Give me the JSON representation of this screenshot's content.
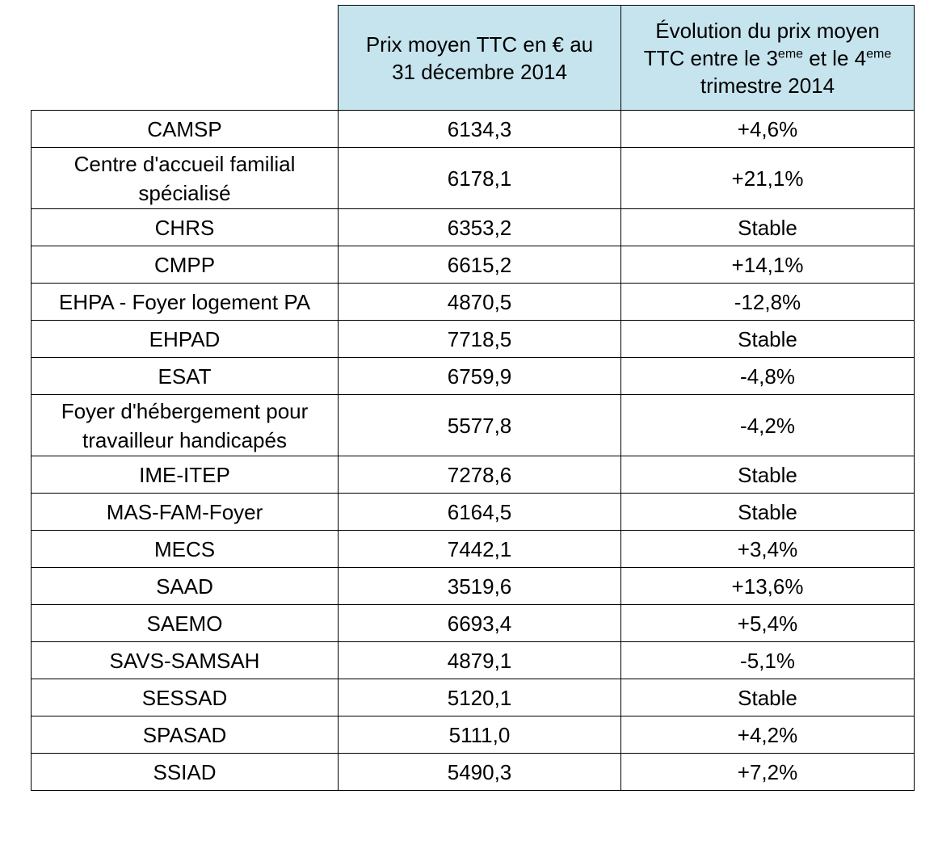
{
  "header": {
    "col_price_lines": [
      "Prix moyen TTC en € au",
      "31 décembre 2014"
    ],
    "col_evolution": {
      "line1": "Évolution du prix moyen",
      "line2_a": "TTC entre le 3",
      "line2_sup1": "eme",
      "line2_b": " et le 4",
      "line2_sup2": "eme",
      "line3": "trimestre 2014"
    }
  },
  "rows": [
    {
      "name": [
        "CAMSP"
      ],
      "price": "6134,3",
      "evolution": "+4,6%"
    },
    {
      "name": [
        "Centre d'accueil familial",
        "spécialisé"
      ],
      "price": "6178,1",
      "evolution": "+21,1%"
    },
    {
      "name": [
        "CHRS"
      ],
      "price": "6353,2",
      "evolution": "Stable"
    },
    {
      "name": [
        "CMPP"
      ],
      "price": "6615,2",
      "evolution": "+14,1%"
    },
    {
      "name": [
        "EHPA - Foyer logement PA"
      ],
      "price": "4870,5",
      "evolution": "-12,8%"
    },
    {
      "name": [
        "EHPAD"
      ],
      "price": "7718,5",
      "evolution": "Stable"
    },
    {
      "name": [
        "ESAT"
      ],
      "price": "6759,9",
      "evolution": "-4,8%"
    },
    {
      "name": [
        "Foyer d'hébergement pour",
        "travailleur handicapés"
      ],
      "price": "5577,8",
      "evolution": "-4,2%"
    },
    {
      "name": [
        "IME-ITEP"
      ],
      "price": "7278,6",
      "evolution": "Stable"
    },
    {
      "name": [
        "MAS-FAM-Foyer"
      ],
      "price": "6164,5",
      "evolution": "Stable"
    },
    {
      "name": [
        "MECS"
      ],
      "price": "7442,1",
      "evolution": "+3,4%"
    },
    {
      "name": [
        "SAAD"
      ],
      "price": "3519,6",
      "evolution": "+13,6%"
    },
    {
      "name": [
        "SAEMO"
      ],
      "price": "6693,4",
      "evolution": "+5,4%"
    },
    {
      "name": [
        "SAVS-SAMSAH"
      ],
      "price": "4879,1",
      "evolution": "-5,1%"
    },
    {
      "name": [
        "SESSAD"
      ],
      "price": "5120,1",
      "evolution": "Stable"
    },
    {
      "name": [
        "SPASAD"
      ],
      "price": "5111,0",
      "evolution": "+4,2%"
    },
    {
      "name": [
        "SSIAD"
      ],
      "price": "5490,3",
      "evolution": "+7,2%"
    }
  ],
  "colors": {
    "header_bg": "#c6e4ee",
    "border": "#000000",
    "text": "#000000"
  }
}
